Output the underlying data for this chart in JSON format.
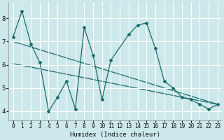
{
  "xlabel": "Humidex (Indice chaleur)",
  "bg_color": "#cce8ea",
  "line_color": "#1a6b6b",
  "grid_color": "#ffffff",
  "x_data": [
    0,
    1,
    2,
    3,
    4,
    5,
    6,
    7,
    8,
    9,
    10,
    11,
    13,
    14,
    15,
    16,
    17,
    18,
    19,
    20,
    21,
    22,
    23
  ],
  "y_data": [
    7.2,
    8.3,
    6.9,
    6.1,
    4.0,
    4.6,
    5.3,
    4.1,
    7.6,
    6.4,
    4.5,
    6.2,
    7.3,
    7.7,
    7.8,
    6.7,
    5.3,
    5.0,
    4.6,
    4.5,
    4.3,
    4.1,
    4.3
  ],
  "trend1_x": [
    0,
    23
  ],
  "trend1_y": [
    7.0,
    4.3
  ],
  "trend2_x": [
    0,
    23
  ],
  "trend2_y": [
    6.05,
    4.3
  ],
  "ylim": [
    3.6,
    8.7
  ],
  "xlim": [
    -0.5,
    23.5
  ],
  "yticks": [
    4,
    5,
    6,
    7,
    8
  ],
  "xticks": [
    0,
    1,
    2,
    3,
    4,
    5,
    6,
    7,
    8,
    9,
    10,
    11,
    12,
    13,
    14,
    15,
    16,
    17,
    18,
    19,
    20,
    21,
    22,
    23
  ]
}
